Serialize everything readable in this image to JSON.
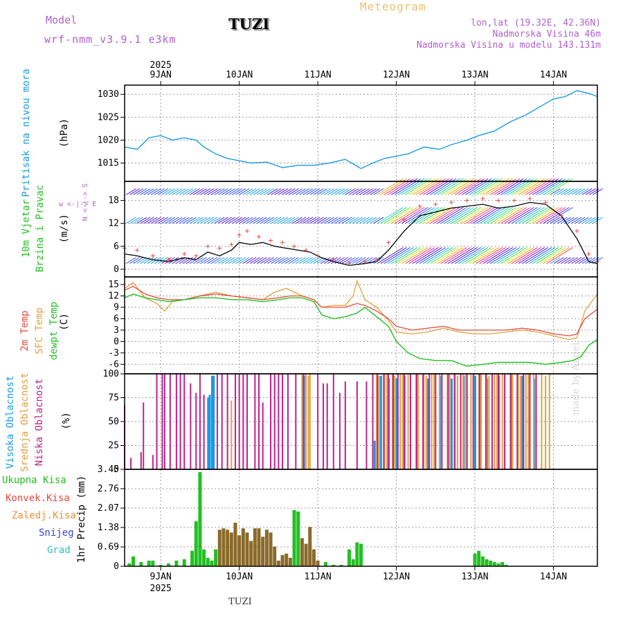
{
  "header": {
    "model_label": "Model",
    "model_name": "wrf-nmm_v3.9.1 e3km",
    "station": "TUZI",
    "meteogram": "Meteogram",
    "lonlat": "lon,lat (19.32E, 42.36N)",
    "altitude": "Nadmorska Visina 46m",
    "model_altitude": "Nadmorska Visina u modelu 143.131m"
  },
  "footer": {
    "station": "TUZI",
    "watermark": "made by Angel"
  },
  "time_axis": {
    "year": "2025",
    "days": [
      "9JAN",
      "10JAN",
      "11JAN",
      "12JAN",
      "13JAN",
      "14JAN"
    ],
    "start_day": 8.54,
    "end_day": 14.56
  },
  "colors": {
    "pressure": "#1a9be0",
    "wind_speed": "#000000",
    "gust": "#e8483a",
    "temp2m": "#e8483a",
    "sfc": "#e0a040",
    "dew": "#22c022",
    "cloud_high": "#1a9be0",
    "cloud_mid": "#e0a040",
    "cloud_low": "#c0208a",
    "precip_total": "#22c022",
    "precip_conv": "#e8483a",
    "precip_frozen": "#f0903a",
    "precip_snow": "#4040d0",
    "precip_graupel": "#30c0c0",
    "precip_stratiform": "#8a6a2a"
  },
  "chart_data": [
    {
      "type": "line",
      "title": "Pritisak na nivou mora",
      "ylabel": "(hPa)",
      "ylim": [
        1011,
        1032
      ],
      "yticks": [
        1015,
        1020,
        1025,
        1030
      ],
      "series": [
        {
          "name": "Pritisak na nivou mora",
          "x": [
            8.54,
            8.7,
            8.85,
            9.0,
            9.15,
            9.3,
            9.45,
            9.55,
            9.7,
            9.85,
            10.0,
            10.15,
            10.35,
            10.55,
            10.75,
            10.95,
            11.15,
            11.35,
            11.55,
            11.7,
            11.85,
            12.0,
            12.15,
            12.35,
            12.55,
            12.7,
            12.9,
            13.05,
            13.25,
            13.45,
            13.65,
            13.85,
            14.0,
            14.15,
            14.3,
            14.45,
            14.56
          ],
          "values": [
            1018.5,
            1018.0,
            1020.5,
            1021.0,
            1020.0,
            1020.5,
            1020.0,
            1018.5,
            1017.0,
            1016.0,
            1015.5,
            1015.0,
            1015.2,
            1014.0,
            1014.5,
            1014.5,
            1015.0,
            1015.8,
            1013.8,
            1015.0,
            1016.0,
            1016.5,
            1017.0,
            1018.5,
            1018.0,
            1019.0,
            1020.0,
            1021.0,
            1022.0,
            1024.0,
            1025.5,
            1027.5,
            1029.0,
            1029.5,
            1030.8,
            1030.2,
            1029.5
          ]
        }
      ]
    },
    {
      "type": "line",
      "title": "10m Vjetar Brzina i Pravac",
      "ylabel": "(m/s)",
      "ylim": [
        -2,
        23
      ],
      "yticks": [
        0,
        6,
        12,
        18
      ],
      "direction_legend": "w <-|-> E",
      "direction_legend_v": "N <-|-> S",
      "series": [
        {
          "name": "Brzina",
          "x": [
            8.54,
            8.7,
            8.9,
            9.1,
            9.3,
            9.45,
            9.6,
            9.75,
            9.9,
            10.0,
            10.15,
            10.3,
            10.45,
            10.6,
            10.75,
            10.9,
            11.05,
            11.2,
            11.4,
            11.6,
            11.75,
            11.9,
            12.1,
            12.3,
            12.5,
            12.7,
            12.9,
            13.1,
            13.3,
            13.5,
            13.7,
            13.9,
            14.1,
            14.3,
            14.45,
            14.56
          ],
          "values": [
            4.0,
            3.5,
            2.5,
            2.0,
            3.0,
            2.5,
            4.5,
            3.5,
            5.0,
            7.0,
            6.5,
            7.0,
            6.0,
            5.5,
            5.0,
            4.5,
            3.0,
            2.0,
            1.0,
            1.5,
            2.0,
            5.0,
            10.0,
            14.0,
            15.0,
            16.0,
            16.5,
            17.0,
            16.0,
            16.5,
            17.5,
            17.0,
            14.0,
            8.0,
            2.0,
            1.5
          ]
        },
        {
          "name": "Udar",
          "x": [
            8.54,
            8.7,
            8.9,
            9.1,
            9.3,
            9.45,
            9.6,
            9.75,
            9.9,
            10.0,
            10.1,
            10.25,
            10.4,
            10.55,
            10.7,
            10.85,
            11.0,
            11.2,
            11.4,
            11.6,
            11.75,
            11.9,
            12.1,
            12.3,
            12.5,
            12.7,
            12.9,
            13.1,
            13.3,
            13.5,
            13.7,
            13.9,
            14.1,
            14.3,
            14.45,
            14.56
          ],
          "values": [
            5.5,
            5.0,
            3.5,
            2.5,
            4.0,
            3.5,
            6.0,
            5.5,
            6.5,
            9.0,
            10.0,
            8.5,
            7.5,
            7.0,
            6.0,
            5.0,
            3.5,
            2.5,
            1.5,
            2.0,
            2.5,
            7.0,
            13.0,
            16.5,
            17.0,
            17.5,
            18.0,
            18.5,
            18.0,
            18.0,
            18.5,
            17.5,
            14.0,
            10.0,
            4.0,
            2.0
          ]
        }
      ]
    },
    {
      "type": "line",
      "ylabel": "(C)",
      "ylim": [
        -8.5,
        17
      ],
      "yticks": [
        -6,
        -3,
        0,
        3,
        6,
        9,
        12,
        15
      ],
      "series": [
        {
          "name": "2m Temp",
          "x": [
            8.54,
            8.65,
            8.8,
            8.95,
            9.1,
            9.3,
            9.5,
            9.7,
            9.9,
            10.1,
            10.3,
            10.5,
            10.65,
            10.8,
            10.95,
            11.05,
            11.2,
            11.35,
            11.5,
            11.6,
            11.75,
            11.9,
            12.0,
            12.2,
            12.4,
            12.6,
            12.8,
            13.0,
            13.2,
            13.4,
            13.6,
            13.8,
            14.0,
            14.2,
            14.3,
            14.4,
            14.56
          ],
          "values": [
            13.5,
            14.5,
            12.5,
            11.5,
            11.0,
            11.0,
            12.0,
            12.5,
            12.0,
            11.5,
            11.0,
            11.5,
            12.0,
            12.0,
            11.0,
            9.0,
            9.0,
            9.0,
            10.0,
            9.5,
            8.0,
            6.0,
            4.0,
            3.0,
            3.5,
            4.0,
            3.0,
            3.0,
            3.0,
            3.0,
            3.5,
            3.0,
            2.0,
            1.5,
            2.0,
            6.0,
            8.5
          ]
        },
        {
          "name": "SFC Temp",
          "x": [
            8.54,
            8.65,
            8.8,
            8.95,
            9.05,
            9.15,
            9.3,
            9.5,
            9.7,
            9.9,
            10.1,
            10.3,
            10.45,
            10.6,
            10.8,
            10.95,
            11.05,
            11.2,
            11.35,
            11.45,
            11.5,
            11.6,
            11.75,
            11.9,
            12.0,
            12.2,
            12.4,
            12.6,
            12.8,
            13.0,
            13.2,
            13.4,
            13.6,
            13.8,
            14.0,
            14.2,
            14.3,
            14.4,
            14.56
          ],
          "values": [
            14.0,
            15.5,
            11.5,
            10.0,
            8.0,
            10.5,
            11.0,
            12.0,
            13.0,
            12.0,
            11.5,
            11.0,
            13.0,
            14.0,
            12.0,
            11.0,
            9.0,
            9.5,
            9.5,
            12.0,
            16.0,
            11.0,
            9.0,
            5.5,
            2.5,
            2.0,
            2.5,
            3.5,
            2.5,
            2.0,
            2.0,
            2.5,
            3.0,
            2.5,
            1.5,
            0.5,
            1.0,
            8.0,
            12.5
          ]
        },
        {
          "name": "dewpt Temp",
          "x": [
            8.54,
            8.65,
            8.8,
            8.95,
            9.1,
            9.3,
            9.5,
            9.7,
            9.9,
            10.1,
            10.3,
            10.5,
            10.65,
            10.8,
            10.95,
            11.05,
            11.2,
            11.35,
            11.5,
            11.6,
            11.75,
            11.9,
            12.0,
            12.15,
            12.3,
            12.5,
            12.7,
            12.9,
            13.1,
            13.3,
            13.5,
            13.7,
            13.9,
            14.1,
            14.25,
            14.35,
            14.45,
            14.56
          ],
          "values": [
            11.5,
            12.5,
            11.5,
            11.0,
            10.5,
            11.0,
            11.5,
            11.5,
            11.0,
            11.0,
            10.5,
            11.0,
            11.5,
            11.5,
            10.5,
            7.0,
            6.0,
            6.5,
            7.5,
            9.0,
            6.5,
            4.0,
            0.0,
            -3.0,
            -4.5,
            -5.0,
            -5.0,
            -6.5,
            -6.0,
            -5.5,
            -5.5,
            -5.5,
            -6.0,
            -5.5,
            -5.0,
            -4.0,
            -1.0,
            0.5
          ]
        }
      ]
    },
    {
      "type": "bar",
      "ylabel": "(%)",
      "ylim": [
        0,
        100
      ],
      "yticks": [
        0,
        25,
        50,
        75,
        100
      ],
      "series": [
        {
          "name": "Visoka Oblacnost",
          "x": [
            9.6,
            9.62,
            9.65,
            9.67,
            10.8,
            10.82,
            11.72,
            11.8,
            11.9,
            12.0,
            12.1,
            12.25,
            12.4,
            12.55,
            12.7,
            12.85,
            13.0,
            13.15,
            13.3,
            13.45,
            13.6,
            13.75
          ],
          "values": [
            75,
            78,
            98,
            98,
            97,
            98,
            30,
            98,
            95,
            95,
            98,
            98,
            95,
            98,
            95,
            98,
            98,
            95,
            98,
            95,
            98,
            95
          ]
        },
        {
          "name": "Srednja Oblacnost",
          "x": [
            9.9,
            10.8,
            10.85,
            10.88,
            10.9,
            11.7,
            11.75,
            11.78,
            11.85,
            11.88,
            11.95,
            11.98,
            12.05,
            12.08,
            12.15,
            12.18,
            12.25,
            12.28,
            12.35,
            12.38,
            12.45,
            12.48,
            12.55,
            12.58,
            12.65,
            12.68,
            12.75,
            12.78,
            12.85,
            12.88,
            12.95,
            12.98,
            13.05,
            13.08,
            13.15,
            13.18,
            13.25,
            13.28,
            13.35,
            13.38,
            13.45,
            13.48,
            13.55,
            13.58,
            13.65,
            13.68,
            13.75,
            13.78,
            13.85,
            13.9,
            13.95
          ],
          "values": [
            72,
            100,
            100,
            98,
            100,
            100,
            100,
            98,
            100,
            100,
            100,
            98,
            100,
            100,
            100,
            98,
            100,
            100,
            100,
            98,
            100,
            100,
            100,
            98,
            100,
            100,
            100,
            98,
            100,
            100,
            100,
            98,
            100,
            100,
            100,
            98,
            100,
            100,
            100,
            98,
            100,
            100,
            100,
            98,
            100,
            100,
            100,
            98,
            100,
            98,
            100
          ]
        },
        {
          "name": "Niska Oblacnost",
          "x": [
            8.54,
            8.62,
            8.75,
            8.78,
            8.9,
            8.95,
            9.02,
            9.05,
            9.12,
            9.2,
            9.25,
            9.3,
            9.38,
            9.45,
            9.5,
            9.55,
            9.72,
            9.78,
            9.85,
            9.95,
            10.0,
            10.05,
            10.1,
            10.2,
            10.25,
            10.3,
            10.4,
            10.45,
            10.5,
            10.55,
            10.62,
            10.72,
            10.82,
            11.0,
            11.07,
            11.12,
            11.2,
            11.28,
            11.35,
            11.5,
            11.62,
            11.7,
            11.76,
            11.84,
            11.9,
            11.96,
            12.02,
            12.1,
            12.18,
            12.26,
            12.34,
            12.42,
            12.5,
            12.58,
            12.66,
            12.74,
            12.82,
            12.9,
            12.98,
            13.06,
            13.14,
            13.22,
            13.3,
            13.38,
            13.46,
            13.54,
            13.62,
            13.7,
            13.78
          ],
          "values": [
            67,
            12,
            18,
            70,
            15,
            100,
            100,
            100,
            100,
            100,
            100,
            100,
            90,
            80,
            100,
            78,
            100,
            100,
            100,
            100,
            100,
            100,
            100,
            100,
            100,
            70,
            100,
            100,
            100,
            100,
            100,
            100,
            100,
            100,
            90,
            90,
            100,
            80,
            92,
            92,
            92,
            100,
            100,
            100,
            100,
            100,
            100,
            100,
            100,
            100,
            100,
            100,
            100,
            100,
            100,
            100,
            100,
            100,
            100,
            100,
            100,
            100,
            100,
            100,
            100,
            100,
            100,
            100,
            100
          ]
        }
      ]
    },
    {
      "type": "bar",
      "ylabel": "1hr Precip (mm)",
      "ylim": [
        0,
        3.45
      ],
      "yticks": [
        0,
        0.69,
        1.38,
        2.07,
        2.76,
        3.45
      ],
      "series": [
        {
          "name": "Ukupna Kisa",
          "x": [
            8.6,
            8.65,
            8.75,
            8.85,
            8.9,
            9.0,
            9.1,
            9.2,
            9.3,
            9.4,
            9.45,
            9.5,
            9.55,
            9.6,
            9.65,
            9.7,
            9.75,
            9.8,
            9.85,
            9.9,
            9.95,
            10.0,
            10.05,
            10.1,
            10.15,
            10.2,
            10.25,
            10.3,
            10.35,
            10.4,
            10.45,
            10.5,
            10.55,
            10.6,
            10.65,
            10.7,
            10.75,
            10.8,
            10.85,
            10.9,
            10.95,
            11.0,
            11.1,
            11.2,
            11.3,
            11.4,
            11.45,
            11.5,
            11.55,
            13.0,
            13.05,
            13.1,
            13.15,
            13.2,
            13.25,
            13.3,
            13.35,
            13.4
          ],
          "values": [
            0.1,
            0.35,
            0.15,
            0.2,
            0.2,
            0.05,
            0.1,
            0.2,
            0.25,
            0.55,
            1.6,
            3.35,
            0.6,
            0.3,
            0.2,
            0.6,
            1.3,
            1.35,
            1.3,
            1.2,
            1.55,
            1.1,
            1.35,
            1.2,
            0.9,
            1.35,
            1.35,
            1.05,
            1.3,
            1.2,
            0.7,
            0.2,
            0.4,
            0.45,
            0.3,
            2.0,
            1.95,
            1.0,
            0.8,
            1.4,
            0.6,
            0.2,
            0.15,
            0.05,
            0.05,
            0.6,
            0.25,
            0.85,
            0.8,
            0.45,
            0.55,
            0.35,
            0.25,
            0.2,
            0.15,
            0.1,
            0.15,
            0.05
          ]
        },
        {
          "name": "Konvek.Kisa",
          "x": [],
          "values": []
        },
        {
          "name": "Zaledj.Kisa",
          "x": [],
          "values": []
        },
        {
          "name": "Snijeg",
          "x": [],
          "values": []
        },
        {
          "name": "Grad",
          "x": [],
          "values": []
        }
      ]
    }
  ],
  "legends": {
    "pressure": "Pritisak na nivou mora",
    "wind_line1": "10m Vjetar",
    "wind_line2": "Brzina i Pravac",
    "temp_2m": "2m Temp",
    "temp_sfc": "SFC Temp",
    "temp_dew": "dewpt Temp",
    "cloud_high": "Visoka Oblacnost",
    "cloud_mid": "Srednja Oblacnost",
    "cloud_low": "Niska Oblacnost",
    "precip_total": "Ukupna Kisa",
    "precip_conv": "Konvek.Kisa",
    "precip_frozen": "Zaledj.Kisa",
    "precip_snow": "Snijeg",
    "precip_graupel": "Grad"
  }
}
